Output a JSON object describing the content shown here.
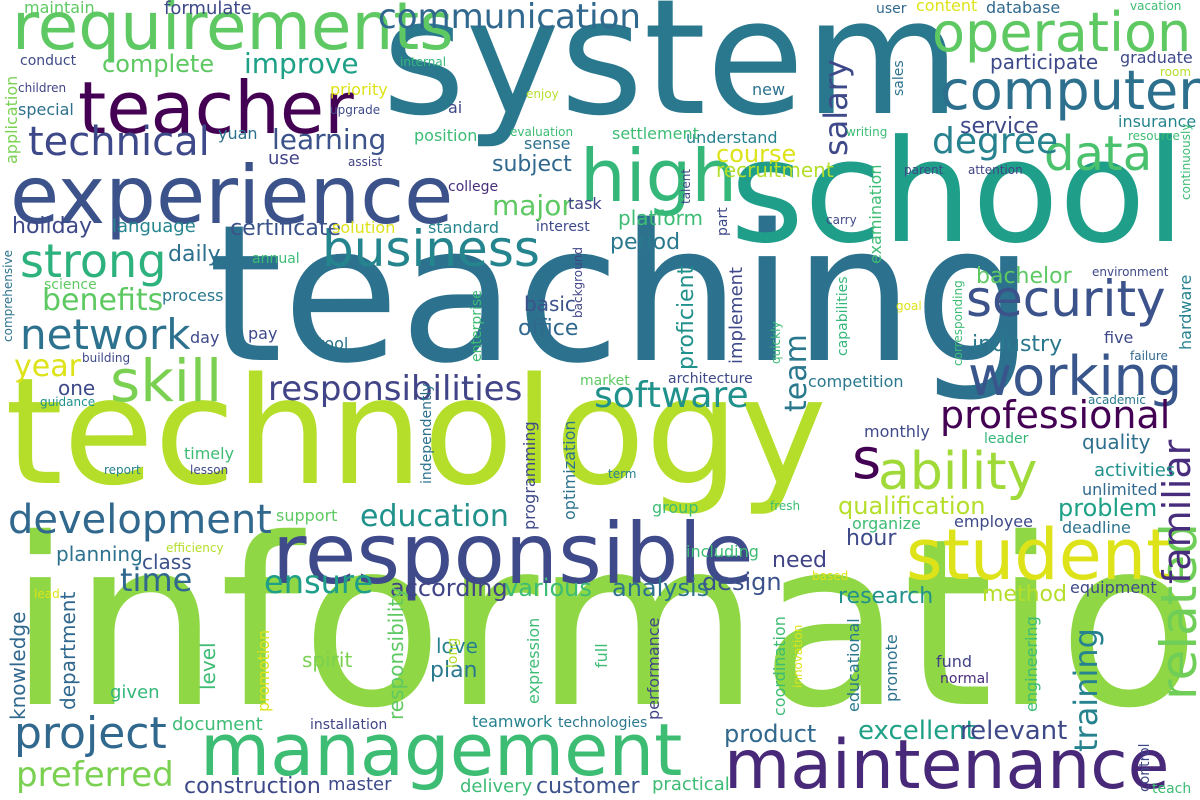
{
  "words": [
    {
      "text": "information",
      "color": "#8fd744"
    },
    {
      "text": "technology",
      "color": "#b5de2b"
    },
    {
      "text": "teaching",
      "color": "#2c728e"
    },
    {
      "text": "system",
      "color": "#2a788e"
    },
    {
      "text": "school",
      "color": "#1f9e89"
    },
    {
      "text": "management",
      "color": "#3dbc74"
    },
    {
      "text": "experience",
      "color": "#3b528b"
    },
    {
      "text": "responsible",
      "color": "#3e4a89"
    },
    {
      "text": "maintenance",
      "color": "#482878"
    },
    {
      "text": "teacher",
      "color": "#440154"
    },
    {
      "text": "requirements",
      "color": "#5ec962"
    },
    {
      "text": "student",
      "color": "#dde318"
    },
    {
      "text": "high",
      "color": "#35b779"
    },
    {
      "text": "operation",
      "color": "#5ec962"
    },
    {
      "text": "computer",
      "color": "#2d708e"
    },
    {
      "text": "technical",
      "color": "#3e4989"
    },
    {
      "text": "business",
      "color": "#25858e"
    },
    {
      "text": "security",
      "color": "#3b528b"
    },
    {
      "text": "working",
      "color": "#39568c"
    },
    {
      "text": "development",
      "color": "#31688e"
    },
    {
      "text": "data",
      "color": "#4ac16d"
    },
    {
      "text": "skill",
      "color": "#7ad151"
    },
    {
      "text": "ability",
      "color": "#a0da39"
    },
    {
      "text": "network",
      "color": "#2c728e"
    },
    {
      "text": "strong",
      "color": "#2db27d"
    },
    {
      "text": "professional",
      "color": "#440154"
    },
    {
      "text": "software",
      "color": "#21918c"
    },
    {
      "text": "responsibilities",
      "color": "#414487"
    },
    {
      "text": "communication",
      "color": "#31688e"
    },
    {
      "text": "related",
      "color": "#6ece58"
    },
    {
      "text": "s",
      "color": "#440154"
    },
    {
      "text": "familiar",
      "color": "#472d7b"
    },
    {
      "text": "project",
      "color": "#31688e"
    },
    {
      "text": "education",
      "color": "#21918c"
    },
    {
      "text": "degree",
      "color": "#26828e"
    },
    {
      "text": "improve",
      "color": "#1fa187"
    },
    {
      "text": "learning",
      "color": "#3b528b"
    },
    {
      "text": "benefits",
      "color": "#5ec962"
    },
    {
      "text": "salary",
      "color": "#3e4989"
    },
    {
      "text": "team",
      "color": "#2a788e"
    },
    {
      "text": "ensure",
      "color": "#1f9e89"
    },
    {
      "text": "time",
      "color": "#31688e"
    },
    {
      "text": "training",
      "color": "#26828e"
    },
    {
      "text": "preferred",
      "color": "#7ad151"
    },
    {
      "text": "year",
      "color": "#dde318"
    },
    {
      "text": "course",
      "color": "#dde318"
    },
    {
      "text": "major",
      "color": "#5ec962"
    },
    {
      "text": "qualification",
      "color": "#b5de2b"
    },
    {
      "text": "problem",
      "color": "#1fa187"
    },
    {
      "text": "according",
      "color": "#414487"
    },
    {
      "text": "various",
      "color": "#3dbc74"
    },
    {
      "text": "analysis",
      "color": "#2c728e"
    },
    {
      "text": "design",
      "color": "#3b528b"
    },
    {
      "text": "excellent",
      "color": "#1fa187"
    },
    {
      "text": "relevant",
      "color": "#3e4989"
    },
    {
      "text": "product",
      "color": "#31688e"
    },
    {
      "text": "construction",
      "color": "#3e4989"
    },
    {
      "text": "customer",
      "color": "#3b528b"
    },
    {
      "text": "complete",
      "color": "#5ec962"
    },
    {
      "text": "service",
      "color": "#3e4989"
    },
    {
      "text": "bachelor",
      "color": "#5ec962"
    },
    {
      "text": "industry",
      "color": "#2a788e"
    },
    {
      "text": "subject",
      "color": "#31688e"
    },
    {
      "text": "certificate",
      "color": "#3b528b"
    },
    {
      "text": "holiday",
      "color": "#3e4989"
    },
    {
      "text": "language",
      "color": "#25858e"
    },
    {
      "text": "daily",
      "color": "#2d708e"
    },
    {
      "text": "office",
      "color": "#31688e"
    },
    {
      "text": "basic",
      "color": "#3b528b"
    },
    {
      "text": "period",
      "color": "#2a788e"
    },
    {
      "text": "platform",
      "color": "#3dbc74"
    },
    {
      "text": "recruitment",
      "color": "#b5de2b"
    },
    {
      "text": "research",
      "color": "#21918c"
    },
    {
      "text": "method",
      "color": "#b5de2b"
    },
    {
      "text": "need",
      "color": "#414487"
    },
    {
      "text": "hour",
      "color": "#3e4989"
    },
    {
      "text": "planning",
      "color": "#2c728e"
    },
    {
      "text": "class",
      "color": "#3b528b"
    },
    {
      "text": "department",
      "color": "#31688e"
    },
    {
      "text": "knowledge",
      "color": "#31688e"
    },
    {
      "text": "level",
      "color": "#3dbc74"
    },
    {
      "text": "plan",
      "color": "#2a788e"
    },
    {
      "text": "love",
      "color": "#26828e"
    },
    {
      "text": "spirit",
      "color": "#7ad151"
    },
    {
      "text": "given",
      "color": "#35b779"
    },
    {
      "text": "document",
      "color": "#3dbc74"
    },
    {
      "text": "master",
      "color": "#3e4a89"
    },
    {
      "text": "delivery",
      "color": "#3dbc74"
    },
    {
      "text": "practical",
      "color": "#3dbc74"
    },
    {
      "text": "teamwork",
      "color": "#26828e"
    },
    {
      "text": "technologies",
      "color": "#2a788e"
    },
    {
      "text": "installation",
      "color": "#414487"
    },
    {
      "text": "quality",
      "color": "#2d708e"
    },
    {
      "text": "activities",
      "color": "#21918c"
    },
    {
      "text": "unlimited",
      "color": "#31688e"
    },
    {
      "text": "monthly",
      "color": "#3e4989"
    },
    {
      "text": "leader",
      "color": "#35b779"
    },
    {
      "text": "employee",
      "color": "#3e4989"
    },
    {
      "text": "deadline",
      "color": "#2c728e"
    },
    {
      "text": "organize",
      "color": "#3dbc74"
    },
    {
      "text": "competition",
      "color": "#2a788e"
    },
    {
      "text": "equipment",
      "color": "#3e4989"
    },
    {
      "text": "fund",
      "color": "#414487"
    },
    {
      "text": "normal",
      "color": "#472d7b"
    },
    {
      "text": "support",
      "color": "#5ec962"
    },
    {
      "text": "including",
      "color": "#3dbc74"
    },
    {
      "text": "group",
      "color": "#3dbc74"
    },
    {
      "text": "one",
      "color": "#3e4989"
    },
    {
      "text": "tool",
      "color": "#2c728e"
    },
    {
      "text": "day",
      "color": "#3e4989"
    },
    {
      "text": "pay",
      "color": "#3e4989"
    },
    {
      "text": "process",
      "color": "#2a788e"
    },
    {
      "text": "science",
      "color": "#5ec962"
    },
    {
      "text": "annual",
      "color": "#3dbc74"
    },
    {
      "text": "solution",
      "color": "#dde318"
    },
    {
      "text": "standard",
      "color": "#25858e"
    },
    {
      "text": "interest",
      "color": "#3e4989"
    },
    {
      "text": "task",
      "color": "#414487"
    },
    {
      "text": "college",
      "color": "#472d7b"
    },
    {
      "text": "sense",
      "color": "#2d708e"
    },
    {
      "text": "understand",
      "color": "#26828e"
    },
    {
      "text": "settlement",
      "color": "#3dbc74"
    },
    {
      "text": "evaluation",
      "color": "#3dbc74"
    },
    {
      "text": "new",
      "color": "#2c728e"
    },
    {
      "text": "user",
      "color": "#31688e"
    },
    {
      "text": "content",
      "color": "#dde318"
    },
    {
      "text": "database",
      "color": "#31688e"
    },
    {
      "text": "participate",
      "color": "#3e4989"
    },
    {
      "text": "graduate",
      "color": "#3e4989"
    },
    {
      "text": "room",
      "color": "#b5de2b"
    },
    {
      "text": "vacation",
      "color": "#3dbc74"
    },
    {
      "text": "insurance",
      "color": "#25858e"
    },
    {
      "text": "resource",
      "color": "#3dbc74"
    },
    {
      "text": "writing",
      "color": "#3dbc74"
    },
    {
      "text": "parent",
      "color": "#3e4989"
    },
    {
      "text": "attention",
      "color": "#414487"
    },
    {
      "text": "carry",
      "color": "#3e4989"
    },
    {
      "text": "environment",
      "color": "#3e4989"
    },
    {
      "text": "goal",
      "color": "#dde318"
    },
    {
      "text": "five",
      "color": "#3e4989"
    },
    {
      "text": "failure",
      "color": "#31688e"
    },
    {
      "text": "academic",
      "color": "#2a788e"
    },
    {
      "text": "maintain",
      "color": "#5ec962"
    },
    {
      "text": "formulate",
      "color": "#3e4989"
    },
    {
      "text": "conduct",
      "color": "#3e4989"
    },
    {
      "text": "children",
      "color": "#414487"
    },
    {
      "text": "special",
      "color": "#2d708e"
    },
    {
      "text": "priority",
      "color": "#dde318"
    },
    {
      "text": "upgrade",
      "color": "#3e4989"
    },
    {
      "text": "internal",
      "color": "#35b779"
    },
    {
      "text": "enjoy",
      "color": "#b5de2b"
    },
    {
      "text": "ai",
      "color": "#3e4989"
    },
    {
      "text": "position",
      "color": "#3dbc74"
    },
    {
      "text": "yuan",
      "color": "#2c728e"
    },
    {
      "text": "use",
      "color": "#414487"
    },
    {
      "text": "assist",
      "color": "#414487"
    },
    {
      "text": "building",
      "color": "#3e4989"
    },
    {
      "text": "guidance",
      "color": "#21918c"
    },
    {
      "text": "report",
      "color": "#26828e"
    },
    {
      "text": "lesson",
      "color": "#3e4989"
    },
    {
      "text": "timely",
      "color": "#3dbc74"
    },
    {
      "text": "efficiency",
      "color": "#b5de2b"
    },
    {
      "text": "term",
      "color": "#26828e"
    },
    {
      "text": "fresh",
      "color": "#3dbc74"
    },
    {
      "text": "market",
      "color": "#5ec962"
    },
    {
      "text": "architecture",
      "color": "#3e4989"
    },
    {
      "text": "based",
      "color": "#dde318"
    },
    {
      "text": "lead",
      "color": "#dde318"
    },
    {
      "text": "application",
      "color": "#7ad151"
    },
    {
      "text": "comprehensive",
      "color": "#2c728e"
    },
    {
      "text": "independently",
      "color": "#2c728e"
    },
    {
      "text": "programming",
      "color": "#3e4989"
    },
    {
      "text": "optimization",
      "color": "#2c728e"
    },
    {
      "text": "enterprise",
      "color": "#3dbc74"
    },
    {
      "text": "background",
      "color": "#414487"
    },
    {
      "text": "proficient",
      "color": "#21918c"
    },
    {
      "text": "implement",
      "color": "#3e4989"
    },
    {
      "text": "quickly",
      "color": "#3dbc74"
    },
    {
      "text": "capabilities",
      "color": "#35b779"
    },
    {
      "text": "examination",
      "color": "#3dbc74"
    },
    {
      "text": "part",
      "color": "#3e4989"
    },
    {
      "text": "talent",
      "color": "#3e4989"
    },
    {
      "text": "sales",
      "color": "#2c728e"
    },
    {
      "text": "continuously",
      "color": "#3dbc74"
    },
    {
      "text": "hardware",
      "color": "#26828e"
    },
    {
      "text": "corresponding",
      "color": "#3dbc74"
    },
    {
      "text": "responsibility",
      "color": "#5ec962"
    },
    {
      "text": "promotion",
      "color": "#dde318"
    },
    {
      "text": "expression",
      "color": "#3dbc74"
    },
    {
      "text": "full",
      "color": "#3dbc74"
    },
    {
      "text": "long",
      "color": "#b5de2b"
    },
    {
      "text": "performance",
      "color": "#414487"
    },
    {
      "text": "coordination",
      "color": "#3dbc74"
    },
    {
      "text": "innovation",
      "color": "#dde318"
    },
    {
      "text": "educational",
      "color": "#2a788e"
    },
    {
      "text": "promote",
      "color": "#2c728e"
    },
    {
      "text": "engineering",
      "color": "#3dbc74"
    },
    {
      "text": "control",
      "color": "#3e4989"
    },
    {
      "text": "teach",
      "color": "#3dbc74"
    }
  ]
}
